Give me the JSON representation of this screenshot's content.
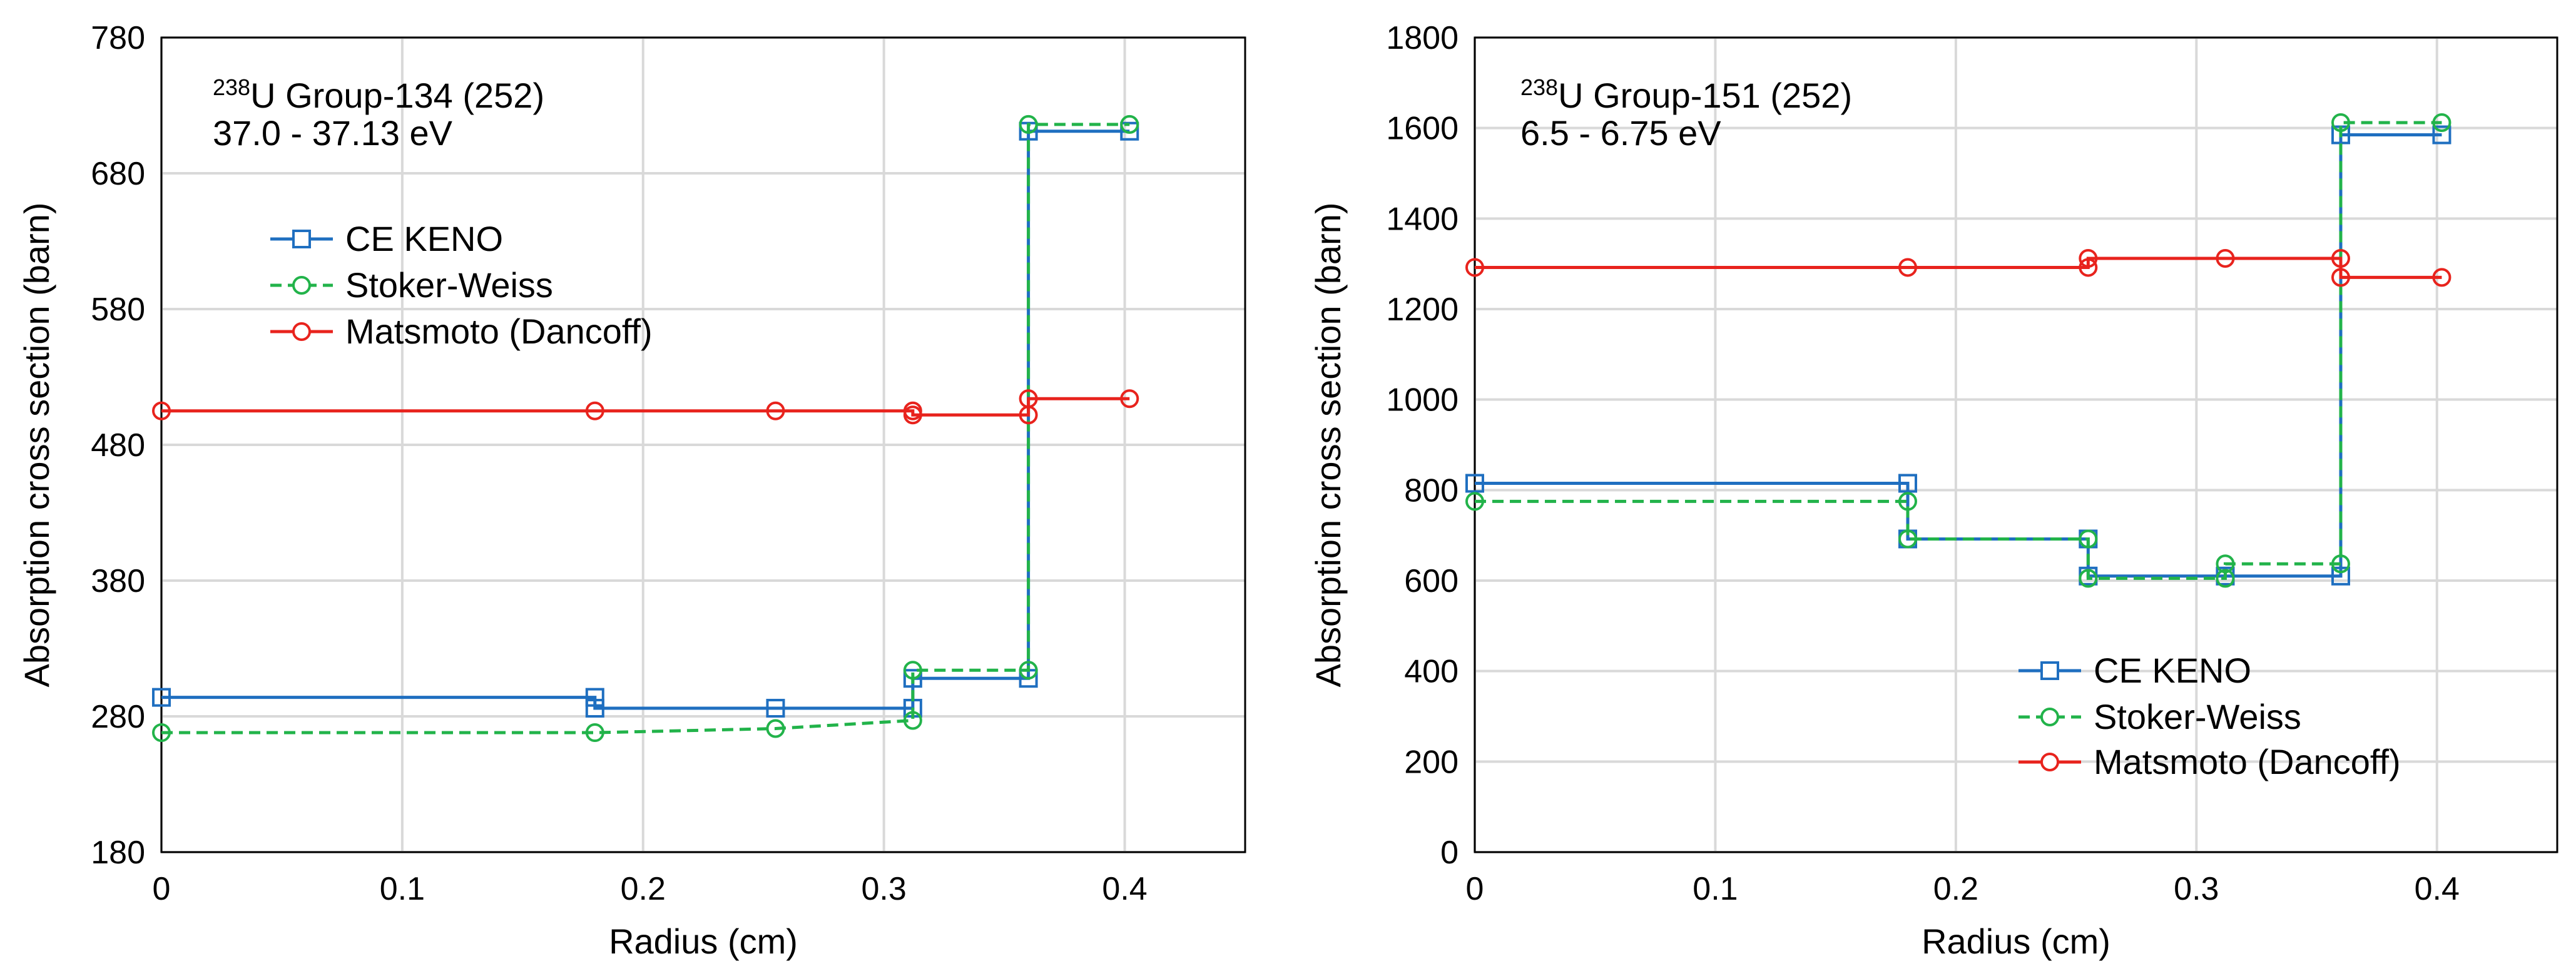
{
  "chart_data": [
    {
      "type": "line",
      "annotation": {
        "sup": "238",
        "line1": "U Group-134  (252)",
        "line2": "37.0 - 37.13 eV"
      },
      "xlabel": "Radius (cm)",
      "ylabel": "Absorption cross section (barn)",
      "xlim": [
        0,
        0.45
      ],
      "ylim": [
        180,
        780
      ],
      "xticks": [
        0,
        0.1,
        0.2,
        0.3,
        0.4
      ],
      "xtick_labels": [
        "0",
        "0.1",
        "0.2",
        "0.3",
        "0.4"
      ],
      "yticks": [
        180,
        280,
        380,
        480,
        580,
        680,
        780
      ],
      "ytick_labels": [
        "180",
        "280",
        "380",
        "480",
        "580",
        "680",
        "780"
      ],
      "legend_position": "upper-left",
      "series": [
        {
          "name": "CE KENO",
          "color": "#1f6fc0",
          "style": "solid",
          "marker": "square",
          "x": [
            0,
            0.18,
            0.18,
            0.255,
            0.312,
            0.312,
            0.36,
            0.36,
            0.402
          ],
          "y": [
            294,
            294,
            286,
            286,
            286,
            308,
            308,
            711,
            711
          ]
        },
        {
          "name": "Stoker-Weiss",
          "color": "#22b34a",
          "style": "dashed",
          "marker": "circle",
          "x": [
            0,
            0.18,
            0.255,
            0.312,
            0.312,
            0.36,
            0.36,
            0.402
          ],
          "y": [
            268,
            268,
            271,
            277,
            314,
            314,
            716,
            716
          ]
        },
        {
          "name": "Matsmoto (Dancoff)",
          "color": "#e8231d",
          "style": "solid",
          "marker": "circle",
          "x": [
            0,
            0.18,
            0.255,
            0.312,
            0.312,
            0.36,
            0.36,
            0.402
          ],
          "y": [
            505,
            505,
            505,
            505,
            502,
            502,
            514,
            514
          ]
        }
      ]
    },
    {
      "type": "line",
      "annotation": {
        "sup": "238",
        "line1": "U Group-151  (252)",
        "line2": "6.5 - 6.75 eV"
      },
      "xlabel": "Radius (cm)",
      "ylabel": "Absorption cross section (barn)",
      "xlim": [
        0,
        0.45
      ],
      "ylim": [
        0,
        1800
      ],
      "xticks": [
        0,
        0.1,
        0.2,
        0.3,
        0.4
      ],
      "xtick_labels": [
        "0",
        "0.1",
        "0.2",
        "0.3",
        "0.4"
      ],
      "yticks": [
        0,
        200,
        400,
        600,
        800,
        1000,
        1200,
        1400,
        1600,
        1800
      ],
      "ytick_labels": [
        "0",
        "200",
        "400",
        "600",
        "800",
        "1000",
        "1200",
        "1400",
        "1600",
        "1800"
      ],
      "legend_position": "lower-right",
      "series": [
        {
          "name": "CE KENO",
          "color": "#1f6fc0",
          "style": "solid",
          "marker": "square",
          "x": [
            0,
            0.18,
            0.18,
            0.255,
            0.255,
            0.312,
            0.36,
            0.36,
            0.402
          ],
          "y": [
            815,
            815,
            692,
            692,
            610,
            610,
            610,
            1585,
            1585
          ]
        },
        {
          "name": "Stoker-Weiss",
          "color": "#22b34a",
          "style": "dashed",
          "marker": "circle",
          "x": [
            0,
            0.18,
            0.18,
            0.255,
            0.255,
            0.312,
            0.312,
            0.36,
            0.36,
            0.402
          ],
          "y": [
            775,
            775,
            692,
            692,
            605,
            605,
            637,
            637,
            1612,
            1612
          ]
        },
        {
          "name": "Matsmoto (Dancoff)",
          "color": "#e8231d",
          "style": "solid",
          "marker": "circle",
          "x": [
            0,
            0.18,
            0.255,
            0.255,
            0.312,
            0.36,
            0.36,
            0.402
          ],
          "y": [
            1292,
            1292,
            1292,
            1312,
            1312,
            1312,
            1270,
            1270
          ]
        }
      ]
    }
  ]
}
